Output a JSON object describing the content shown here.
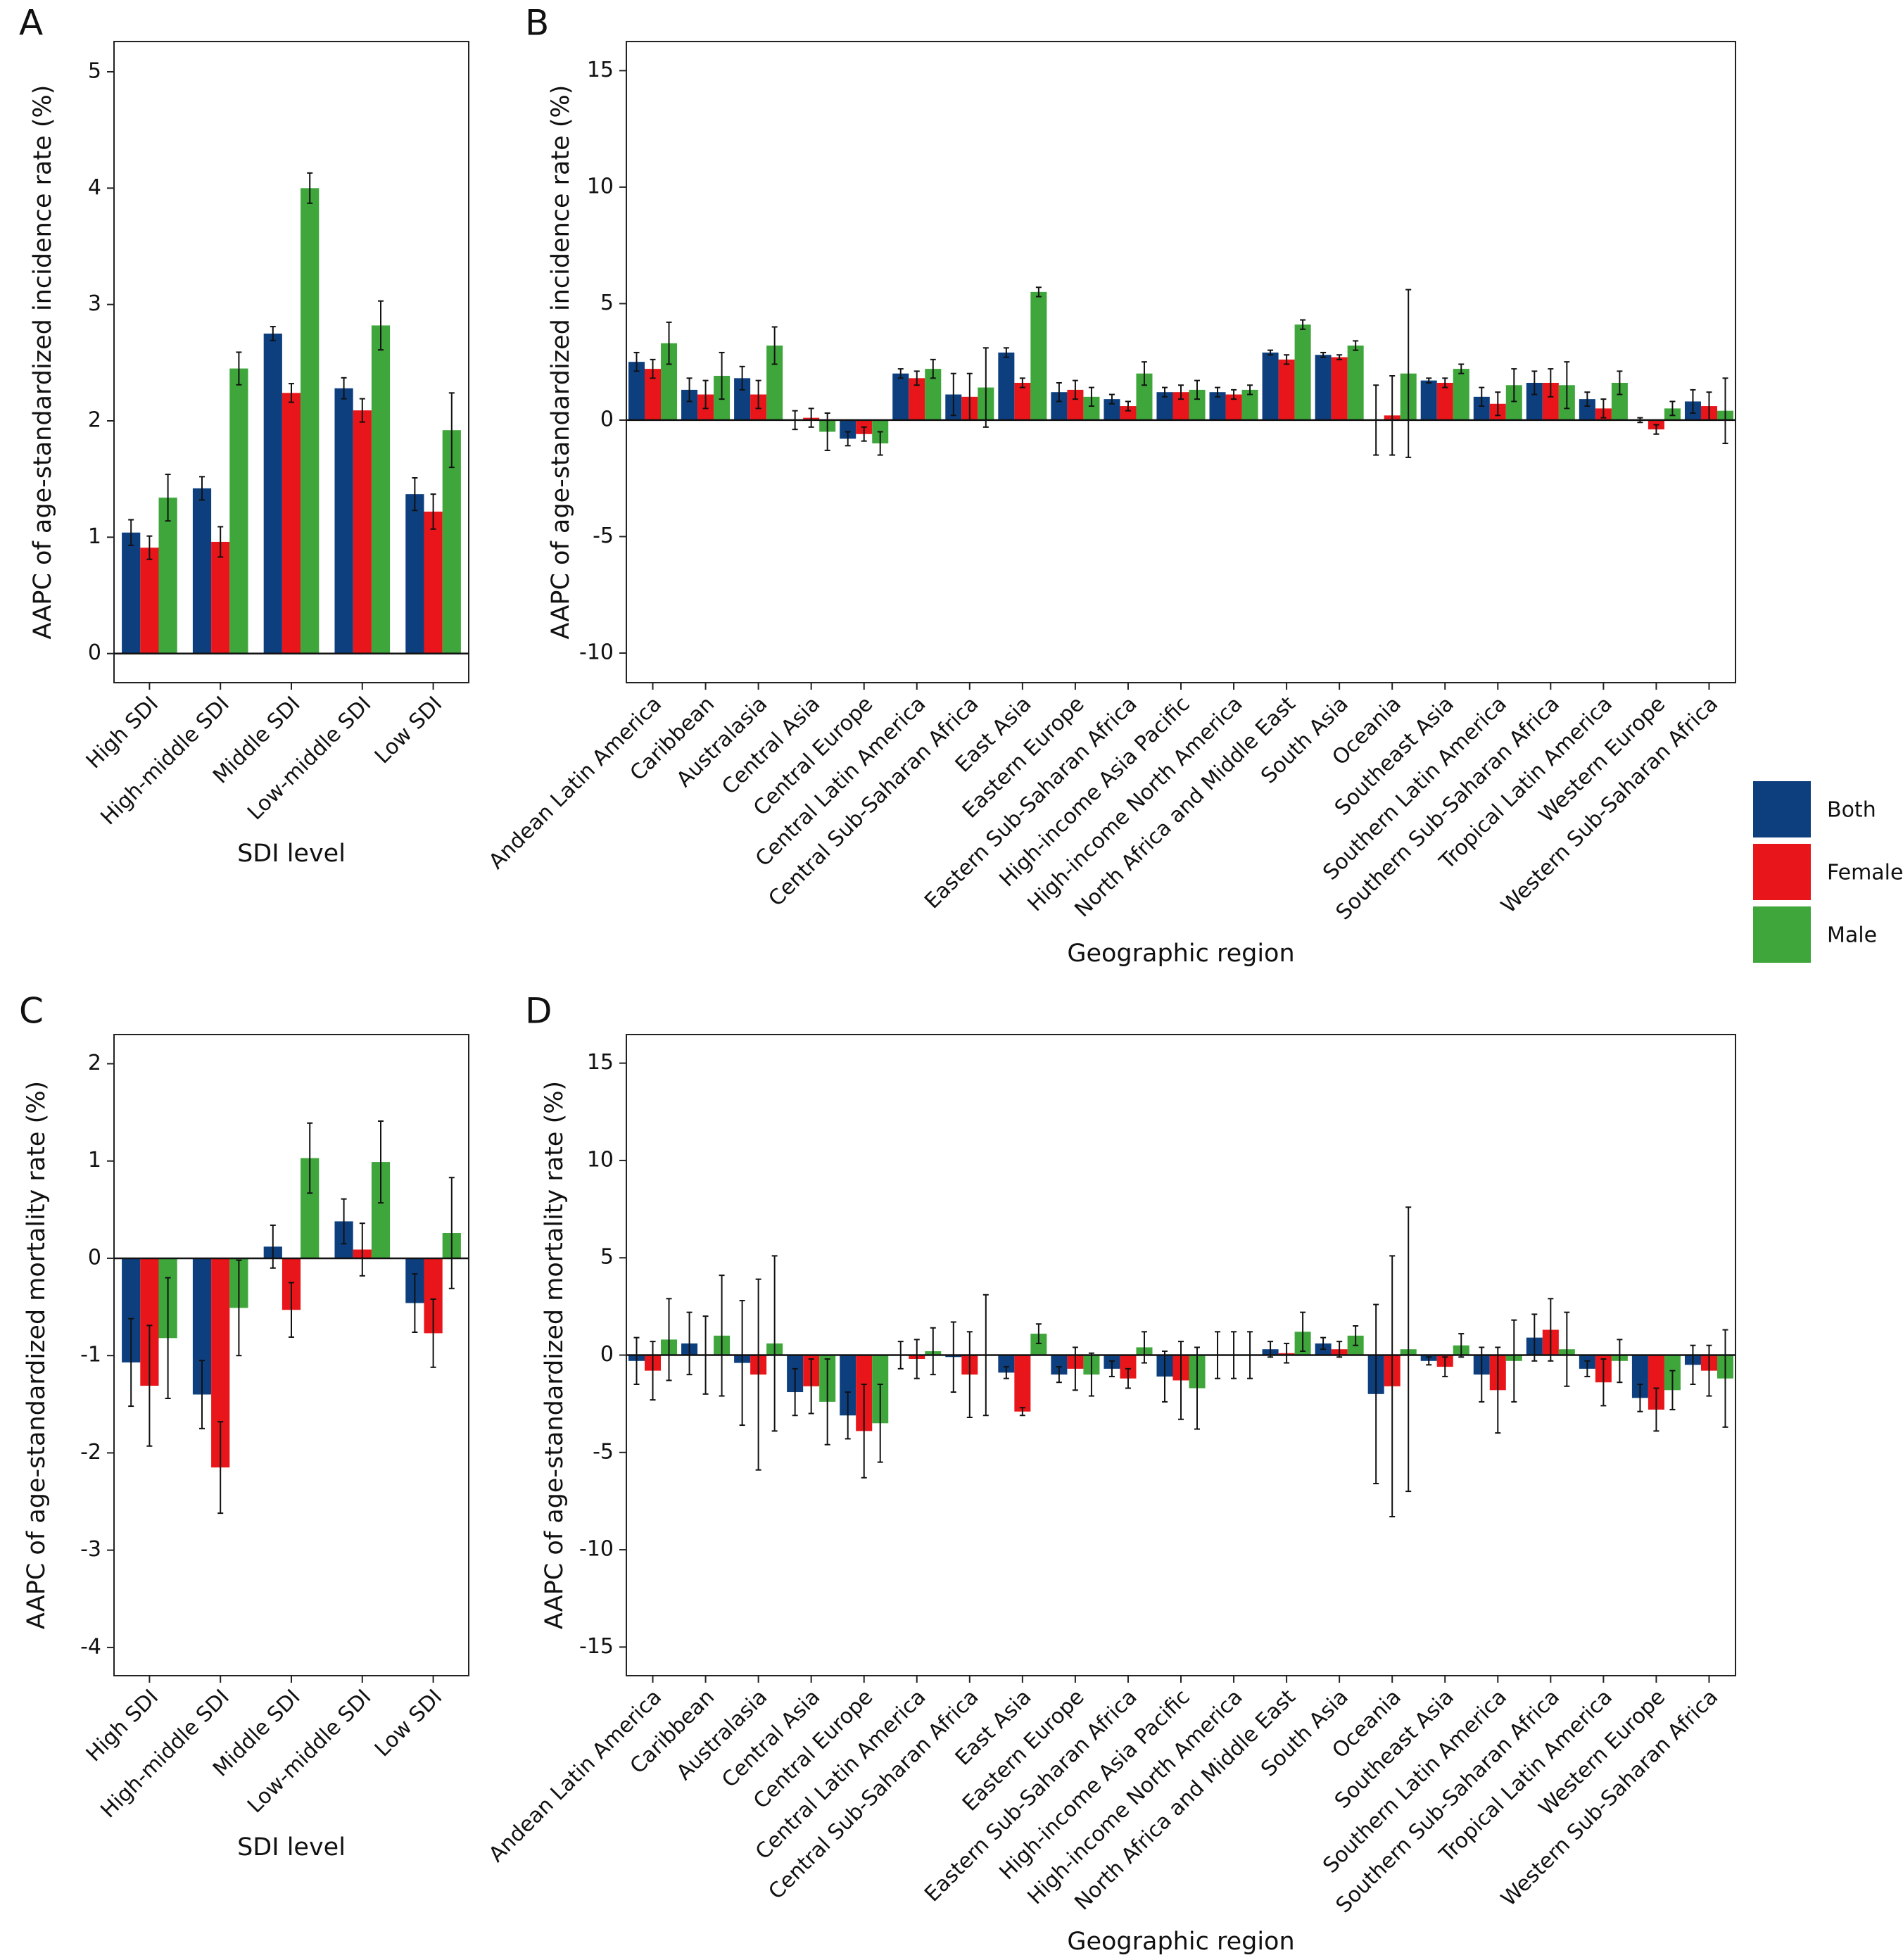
{
  "chart_data": [
    {
      "type": "bar",
      "panel": "A",
      "xlabel": "SDI level",
      "ylabel": "AAPC of age-standardized incidence rate (%)",
      "categories": [
        "High SDI",
        "High-middle SDI",
        "Middle SDI",
        "Low-middle SDI",
        "Low SDI"
      ],
      "series": [
        {
          "color": "#0d3f7f",
          "values": [
            1.04,
            1.42,
            2.75,
            2.28,
            1.37
          ],
          "errors": [
            0.11,
            0.1,
            0.06,
            0.09,
            0.14
          ]
        },
        {
          "color": "#e8151a",
          "values": [
            0.91,
            0.96,
            2.24,
            2.09,
            1.22
          ],
          "errors": [
            0.1,
            0.13,
            0.08,
            0.1,
            0.15
          ]
        },
        {
          "color": "#3fa63c",
          "values": [
            1.34,
            2.45,
            4.0,
            2.82,
            1.92
          ],
          "errors": [
            0.2,
            0.14,
            0.13,
            0.21,
            0.32
          ]
        }
      ],
      "ylim": [
        -0.25,
        5.26
      ],
      "yticks": [
        0,
        1,
        2,
        3,
        4,
        5
      ]
    },
    {
      "type": "bar",
      "panel": "B",
      "xlabel": "Geographic region",
      "ylabel": "AAPC of age-standardized incidence rate (%)",
      "legend": "right",
      "categories": [
        "Andean Latin America",
        "Caribbean",
        "Australasia",
        "Central Asia",
        "Central Europe",
        "Central Latin America",
        "Central Sub-Saharan Africa",
        "East Asia",
        "Eastern Europe",
        "Eastern Sub-Saharan Africa",
        "High-income Asia Pacific",
        "High-income North America",
        "North Africa and Middle East",
        "South Asia",
        "Oceania",
        "Southeast Asia",
        "Southern Latin America",
        "Southern Sub-Saharan Africa",
        "Tropical Latin America",
        "Western Europe",
        "Western Sub-Saharan Africa"
      ],
      "series": [
        {
          "name": "Both",
          "color": "#0d3f7f",
          "values": [
            2.5,
            1.3,
            1.8,
            0.0,
            -0.8,
            2.0,
            1.1,
            2.9,
            1.2,
            0.9,
            1.2,
            1.2,
            2.9,
            2.8,
            0.0,
            1.7,
            1.0,
            1.6,
            0.9,
            0.0,
            0.8
          ],
          "errors": [
            0.4,
            0.5,
            0.5,
            0.4,
            0.3,
            0.2,
            0.9,
            0.2,
            0.4,
            0.2,
            0.2,
            0.2,
            0.1,
            0.1,
            1.5,
            0.1,
            0.4,
            0.5,
            0.3,
            0.1,
            0.5
          ]
        },
        {
          "name": "Female",
          "color": "#e8151a",
          "values": [
            2.2,
            1.1,
            1.1,
            0.1,
            -0.6,
            1.8,
            1.0,
            1.6,
            1.3,
            0.6,
            1.2,
            1.1,
            2.6,
            2.7,
            0.2,
            1.6,
            0.7,
            1.6,
            0.5,
            -0.4,
            0.6
          ],
          "errors": [
            0.4,
            0.6,
            0.6,
            0.4,
            0.3,
            0.3,
            1.0,
            0.2,
            0.4,
            0.2,
            0.3,
            0.2,
            0.2,
            0.1,
            1.7,
            0.2,
            0.5,
            0.6,
            0.4,
            0.2,
            0.6
          ]
        },
        {
          "name": "Male",
          "color": "#3fa63c",
          "values": [
            3.3,
            1.9,
            3.2,
            -0.5,
            -1.0,
            2.2,
            1.4,
            5.5,
            1.0,
            2.0,
            1.3,
            1.3,
            4.1,
            3.2,
            2.0,
            2.2,
            1.5,
            1.5,
            1.6,
            0.5,
            0.4
          ],
          "errors": [
            0.9,
            1.0,
            0.8,
            0.8,
            0.5,
            0.4,
            1.7,
            0.2,
            0.4,
            0.5,
            0.4,
            0.2,
            0.2,
            0.2,
            3.6,
            0.2,
            0.7,
            1.0,
            0.5,
            0.3,
            1.4
          ]
        }
      ],
      "ylim": [
        -11.27,
        16.25
      ],
      "yticks": [
        -10,
        -5,
        0,
        5,
        10,
        15
      ]
    },
    {
      "type": "bar",
      "panel": "C",
      "xlabel": "SDI level",
      "ylabel": "AAPC of age-standardized mortality rate (%)",
      "categories": [
        "High SDI",
        "High-middle SDI",
        "Middle SDI",
        "Low-middle SDI",
        "Low SDI"
      ],
      "series": [
        {
          "color": "#0d3f7f",
          "values": [
            -1.07,
            -1.4,
            0.12,
            0.38,
            -0.46
          ],
          "errors": [
            0.45,
            0.35,
            0.22,
            0.23,
            0.3
          ]
        },
        {
          "color": "#e8151a",
          "values": [
            -1.31,
            -2.15,
            -0.53,
            0.09,
            -0.77
          ],
          "errors": [
            0.62,
            0.47,
            0.28,
            0.27,
            0.35
          ]
        },
        {
          "color": "#3fa63c",
          "values": [
            -0.82,
            -0.51,
            1.03,
            0.99,
            0.26
          ],
          "errors": [
            0.62,
            0.49,
            0.36,
            0.42,
            0.57
          ]
        }
      ],
      "ylim": [
        -4.29,
        2.3
      ],
      "yticks": [
        -4,
        -3,
        -2,
        -1,
        0,
        1,
        2
      ]
    },
    {
      "type": "bar",
      "panel": "D",
      "xlabel": "Geographic region",
      "ylabel": "AAPC of age-standardized mortality rate (%)",
      "categories": [
        "Andean Latin America",
        "Caribbean",
        "Australasia",
        "Central Asia",
        "Central Europe",
        "Central Latin America",
        "Central Sub-Saharan Africa",
        "East Asia",
        "Eastern Europe",
        "Eastern Sub-Saharan Africa",
        "High-income Asia Pacific",
        "High-income North America",
        "North Africa and Middle East",
        "South Asia",
        "Oceania",
        "Southeast Asia",
        "Southern Latin America",
        "Southern Sub-Saharan Africa",
        "Tropical Latin America",
        "Western Europe",
        "Western Sub-Saharan Africa"
      ],
      "series": [
        {
          "color": "#0d3f7f",
          "values": [
            -0.3,
            0.6,
            -0.4,
            -1.9,
            -3.1,
            0.0,
            -0.1,
            -0.9,
            -1.0,
            -0.7,
            -1.1,
            0.0,
            0.3,
            0.6,
            -2.0,
            -0.3,
            -1.0,
            0.9,
            -0.7,
            -2.2,
            -0.5
          ],
          "errors": [
            1.2,
            1.6,
            3.2,
            1.2,
            1.2,
            0.7,
            1.8,
            0.3,
            0.4,
            0.4,
            1.3,
            1.2,
            0.4,
            0.3,
            4.6,
            0.2,
            1.4,
            1.2,
            0.4,
            0.7,
            1.0
          ]
        },
        {
          "color": "#e8151a",
          "values": [
            -0.8,
            0.0,
            -1.0,
            -1.6,
            -3.9,
            -0.2,
            -1.0,
            -2.9,
            -0.7,
            -1.2,
            -1.3,
            0.0,
            0.1,
            0.3,
            -1.6,
            -0.6,
            -1.8,
            1.3,
            -1.4,
            -2.8,
            -0.8
          ],
          "errors": [
            1.5,
            2.0,
            4.9,
            1.4,
            2.4,
            1.0,
            2.2,
            0.2,
            1.1,
            0.5,
            2.0,
            1.2,
            0.5,
            0.4,
            6.7,
            0.5,
            2.2,
            1.6,
            1.2,
            1.1,
            1.3
          ]
        },
        {
          "color": "#3fa63c",
          "values": [
            0.8,
            1.0,
            0.6,
            -2.4,
            -3.5,
            0.2,
            0.0,
            1.1,
            -1.0,
            0.4,
            -1.7,
            0.0,
            1.2,
            1.0,
            0.3,
            0.5,
            -0.3,
            0.3,
            -0.3,
            -1.8,
            -1.2
          ],
          "errors": [
            2.1,
            3.1,
            4.5,
            2.2,
            2.0,
            1.2,
            3.1,
            0.5,
            1.1,
            0.8,
            2.1,
            1.2,
            1.0,
            0.5,
            7.3,
            0.6,
            2.1,
            1.9,
            1.1,
            1.0,
            2.5
          ]
        }
      ],
      "ylim": [
        -16.47,
        16.47
      ],
      "yticks": [
        -15,
        -10,
        -5,
        0,
        5,
        10,
        15
      ]
    }
  ]
}
